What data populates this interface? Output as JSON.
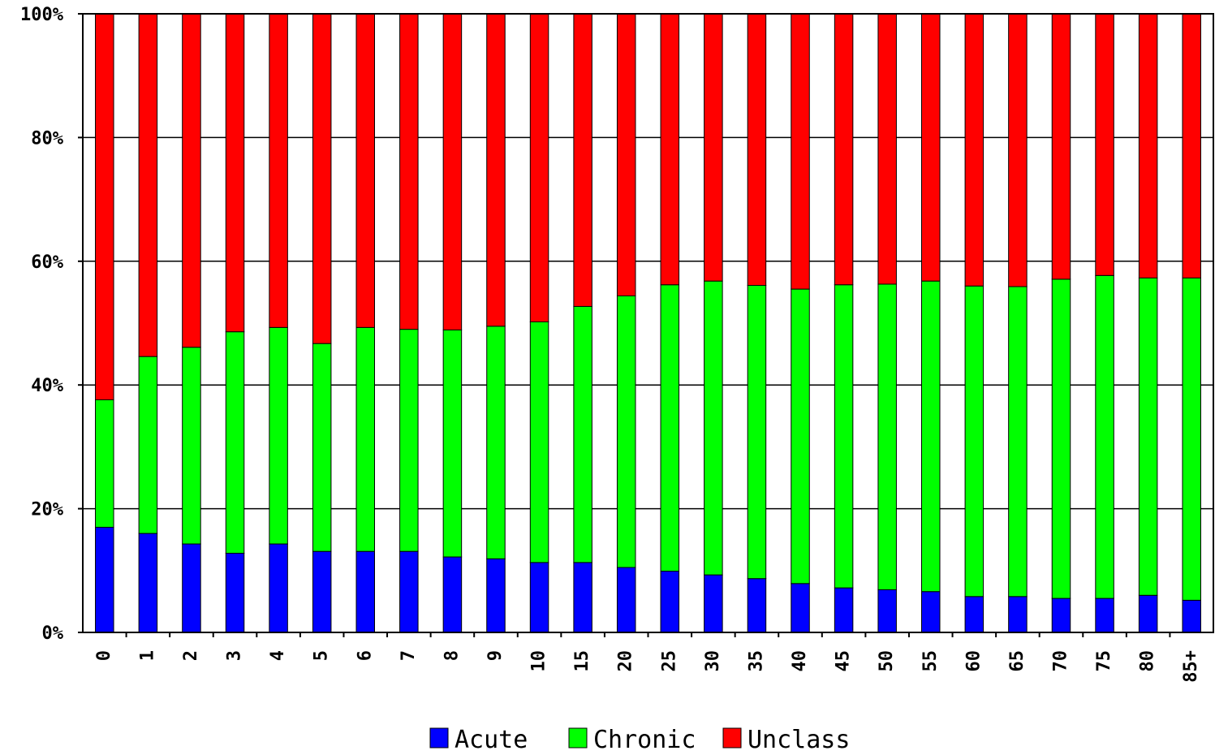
{
  "chart_data": {
    "type": "bar",
    "stacked": true,
    "percent_stacked": true,
    "categories": [
      "0",
      "1",
      "2",
      "3",
      "4",
      "5",
      "6",
      "7",
      "8",
      "9",
      "10",
      "15",
      "20",
      "25",
      "30",
      "35",
      "40",
      "45",
      "50",
      "55",
      "60",
      "65",
      "70",
      "75",
      "80",
      "85+"
    ],
    "series": [
      {
        "name": "Acute",
        "color": "#0000FF",
        "values": [
          17.0,
          16.0,
          14.3,
          12.8,
          14.3,
          13.1,
          13.1,
          13.1,
          12.2,
          11.9,
          11.3,
          11.3,
          10.5,
          9.9,
          9.3,
          8.7,
          7.9,
          7.2,
          6.9,
          6.6,
          5.8,
          5.8,
          5.5,
          5.5,
          6.0,
          5.2
        ]
      },
      {
        "name": "Chronic",
        "color": "#00FF00",
        "values": [
          20.6,
          28.6,
          31.8,
          35.8,
          35.0,
          33.6,
          36.2,
          35.9,
          36.7,
          37.6,
          38.9,
          41.4,
          43.9,
          46.3,
          47.5,
          47.4,
          47.6,
          49.0,
          49.4,
          50.2,
          50.2,
          50.1,
          51.6,
          52.2,
          51.3,
          52.1
        ]
      },
      {
        "name": "Unclass",
        "color": "#FF0000",
        "values": [
          62.4,
          55.4,
          53.9,
          51.4,
          50.7,
          53.3,
          50.7,
          51.0,
          51.1,
          50.5,
          49.8,
          47.3,
          45.6,
          43.8,
          43.2,
          43.9,
          44.5,
          43.8,
          43.7,
          43.2,
          44.0,
          44.1,
          42.9,
          42.3,
          42.7,
          42.7
        ]
      }
    ],
    "title": "",
    "xlabel": "",
    "ylabel": "",
    "ylim": [
      0,
      100
    ],
    "yticks": [
      "0%",
      "20%",
      "40%",
      "60%",
      "80%",
      "100%"
    ],
    "grid": true,
    "legend": "bottom"
  }
}
